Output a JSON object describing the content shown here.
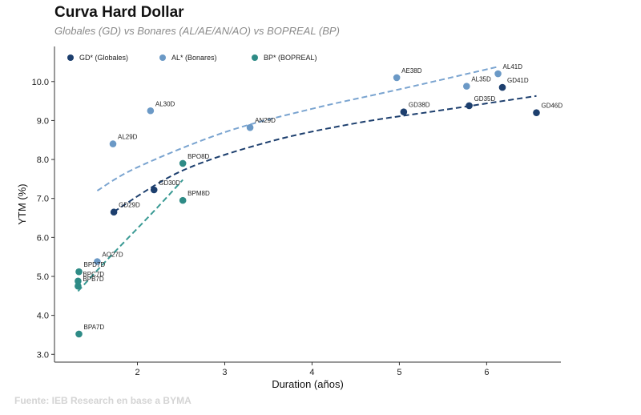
{
  "header": {
    "title": "Curva Hard Dollar",
    "subtitle": "Globales (GD) vs Bonares (AL/AE/AN/AO) vs BOPREAL (BP)"
  },
  "footer": {
    "source": "Fuente: IEB Research en base a BYMA"
  },
  "chart_data": {
    "type": "scatter",
    "title": "Curva Hard Dollar",
    "subtitle": "Globales (GD) vs Bonares (AL/AE/AN/AO) vs BOPREAL (BP)",
    "xlabel": "Duration (años)",
    "ylabel": "YTM (%)",
    "xlim": [
      1.05,
      6.85
    ],
    "ylim": [
      2.8,
      10.9
    ],
    "xticks": [
      2,
      3,
      4,
      5,
      6
    ],
    "yticks": [
      3.0,
      4.0,
      5.0,
      6.0,
      7.0,
      8.0,
      9.0,
      10.0
    ],
    "ytick_labels": [
      "3.0",
      "4.0",
      "5.0",
      "6.0",
      "7.0",
      "8.0",
      "9.0",
      "10.0"
    ],
    "grid": false,
    "legend_position": "top-left",
    "series": [
      {
        "name": "GD* (Globales)",
        "color": "#1d3f6e",
        "trend_color": "#1d3f6e",
        "points": [
          {
            "label": "GD29D",
            "x": 1.73,
            "y": 6.65
          },
          {
            "label": "GD30D",
            "x": 2.19,
            "y": 7.22
          },
          {
            "label": "GD38D",
            "x": 5.05,
            "y": 9.22
          },
          {
            "label": "GD35D",
            "x": 5.8,
            "y": 9.38
          },
          {
            "label": "GD41D",
            "x": 6.18,
            "y": 9.85
          },
          {
            "label": "GD46D",
            "x": 6.57,
            "y": 9.2
          }
        ],
        "trend": [
          [
            1.73,
            6.66
          ],
          [
            2.5,
            7.7
          ],
          [
            3.5,
            8.45
          ],
          [
            4.5,
            8.93
          ],
          [
            5.5,
            9.27
          ],
          [
            6.57,
            9.63
          ]
        ]
      },
      {
        "name": "AL* (Bonares)",
        "color": "#6b99c6",
        "trend_color": "#7aa4d0",
        "points": [
          {
            "label": "AO27D",
            "x": 1.54,
            "y": 5.38
          },
          {
            "label": "AL29D",
            "x": 1.72,
            "y": 8.4
          },
          {
            "label": "AL30D",
            "x": 2.15,
            "y": 9.25
          },
          {
            "label": "AN29D",
            "x": 3.29,
            "y": 8.82
          },
          {
            "label": "AE38D",
            "x": 4.97,
            "y": 10.1
          },
          {
            "label": "AL35D",
            "x": 5.77,
            "y": 9.88
          },
          {
            "label": "AL41D",
            "x": 6.13,
            "y": 10.2
          }
        ],
        "trend": [
          [
            1.54,
            7.2
          ],
          [
            2.0,
            7.8
          ],
          [
            3.0,
            8.7
          ],
          [
            4.0,
            9.3
          ],
          [
            5.0,
            9.8
          ],
          [
            6.13,
            10.38
          ]
        ]
      },
      {
        "name": "BP* (BOPREAL)",
        "color": "#2e8b86",
        "trend_color": "#3a9a94",
        "points": [
          {
            "label": "BPD7D",
            "x": 1.33,
            "y": 5.12
          },
          {
            "label": "BPC7D",
            "x": 1.32,
            "y": 4.88
          },
          {
            "label": "BPB7D",
            "x": 1.32,
            "y": 4.75
          },
          {
            "label": "BPA7D",
            "x": 1.33,
            "y": 3.52
          },
          {
            "label": "BPM8D",
            "x": 2.52,
            "y": 6.95
          },
          {
            "label": "BPO8D",
            "x": 2.52,
            "y": 7.9
          }
        ],
        "trend": [
          [
            1.32,
            4.62
          ],
          [
            1.6,
            5.3
          ],
          [
            1.9,
            6.0
          ],
          [
            2.2,
            6.7
          ],
          [
            2.52,
            7.48
          ]
        ]
      }
    ]
  }
}
